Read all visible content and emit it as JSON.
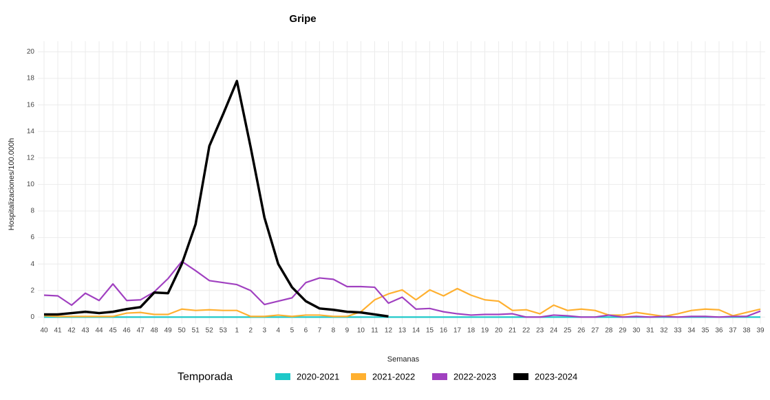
{
  "chart_data": {
    "type": "line",
    "title": "Gripe",
    "x_label": "Semanas",
    "y_label": "Hospitalizaciones/100.000h",
    "legend_title": "Temporada",
    "categories": [
      "40",
      "41",
      "42",
      "43",
      "44",
      "45",
      "46",
      "47",
      "48",
      "49",
      "50",
      "51",
      "52",
      "53",
      "1",
      "2",
      "3",
      "4",
      "5",
      "6",
      "7",
      "8",
      "9",
      "10",
      "11",
      "12",
      "13",
      "14",
      "15",
      "16",
      "17",
      "18",
      "19",
      "20",
      "21",
      "22",
      "23",
      "24",
      "25",
      "26",
      "27",
      "28",
      "29",
      "30",
      "31",
      "32",
      "33",
      "34",
      "35",
      "36",
      "37",
      "38",
      "39"
    ],
    "ylim": [
      -0.5,
      20.8
    ],
    "yticks": [
      0,
      2,
      4,
      6,
      8,
      10,
      12,
      14,
      16,
      18,
      20
    ],
    "grid": true,
    "series": [
      {
        "name": "2020-2021",
        "color": "#1ec8c8",
        "values": [
          0,
          0,
          0,
          0,
          0,
          0,
          0,
          0,
          0,
          0,
          0,
          0,
          0,
          0,
          0,
          0,
          0,
          0,
          0,
          0,
          0,
          0,
          0,
          0,
          0,
          0,
          0,
          0,
          0,
          0,
          0,
          0,
          0,
          0,
          0,
          0,
          0,
          0,
          0,
          0,
          0,
          0,
          0,
          0,
          0,
          0,
          0,
          0,
          0,
          0,
          0,
          0,
          0
        ]
      },
      {
        "name": "2021-2022",
        "color": "#ffb030",
        "values": [
          0.1,
          0.05,
          0.05,
          0.05,
          0.05,
          0.05,
          0.3,
          0.35,
          0.2,
          0.2,
          0.6,
          0.5,
          0.55,
          0.5,
          0.5,
          0.05,
          0.05,
          0.15,
          0.05,
          0.15,
          0.15,
          0.05,
          0.05,
          0.4,
          1.3,
          1.75,
          2.05,
          1.3,
          2.05,
          1.6,
          2.15,
          1.65,
          1.3,
          1.2,
          0.5,
          0.55,
          0.25,
          0.9,
          0.5,
          0.6,
          0.5,
          0.15,
          0.15,
          0.35,
          0.2,
          0.05,
          0.25,
          0.5,
          0.6,
          0.55,
          0.1,
          0.35,
          0.6
        ]
      },
      {
        "name": "2022-2023",
        "color": "#a040c0",
        "values": [
          1.65,
          1.6,
          0.9,
          1.8,
          1.25,
          2.5,
          1.25,
          1.3,
          1.9,
          2.9,
          4.2,
          3.5,
          2.75,
          2.6,
          2.45,
          2.0,
          0.95,
          1.2,
          1.45,
          2.6,
          2.95,
          2.85,
          2.3,
          2.3,
          2.25,
          1.05,
          1.5,
          0.6,
          0.65,
          0.4,
          0.25,
          0.15,
          0.2,
          0.2,
          0.25,
          0.0,
          0.0,
          0.15,
          0.1,
          0.0,
          0.0,
          0.15,
          0.0,
          0.05,
          0.0,
          0.05,
          0.0,
          0.05,
          0.05,
          0.0,
          0.05,
          0.05,
          0.45
        ]
      },
      {
        "name": "2023-2024",
        "color": "#000000",
        "values": [
          0.2,
          0.2,
          0.3,
          0.4,
          0.3,
          0.4,
          0.6,
          0.75,
          1.85,
          1.8,
          4.0,
          7.0,
          12.9,
          15.3,
          17.8,
          12.8,
          7.5,
          4.0,
          2.25,
          1.2,
          0.65,
          0.55,
          0.4,
          0.35,
          0.2,
          0.05,
          null,
          null,
          null,
          null,
          null,
          null,
          null,
          null,
          null,
          null,
          null,
          null,
          null,
          null,
          null,
          null,
          null,
          null,
          null,
          null,
          null,
          null,
          null,
          null,
          null,
          null,
          null
        ]
      }
    ]
  }
}
